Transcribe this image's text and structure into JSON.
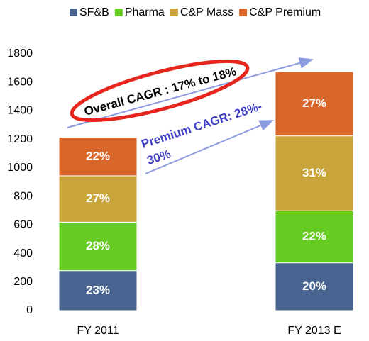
{
  "chart_data": {
    "type": "stacked_bar",
    "categories": [
      "FY 2011",
      "FY 2013 E"
    ],
    "series": [
      {
        "name": "SF&B",
        "color": "#4a6491",
        "values": [
          280,
          335
        ],
        "value_labels": [
          "23%",
          "20%"
        ]
      },
      {
        "name": "Pharma",
        "color": "#66cc22",
        "values": [
          340,
          365
        ],
        "value_labels": [
          "28%",
          "22%"
        ]
      },
      {
        "name": "C&P Mass",
        "color": "#c9a43a",
        "values": [
          325,
          525
        ],
        "value_labels": [
          "27%",
          "31%"
        ]
      },
      {
        "name": "C&P Premium",
        "color": "#d9662a",
        "values": [
          270,
          450
        ],
        "value_labels": [
          "22%",
          "27%"
        ]
      }
    ],
    "ylim": [
      0,
      1800
    ],
    "yticks": [
      0,
      200,
      400,
      600,
      800,
      1000,
      1200,
      1400,
      1600,
      1800
    ],
    "annotations": [
      "Overall CAGR : 17% to 18%",
      "Premium CAGR: 28%-",
      "30%"
    ],
    "legend": "top"
  }
}
